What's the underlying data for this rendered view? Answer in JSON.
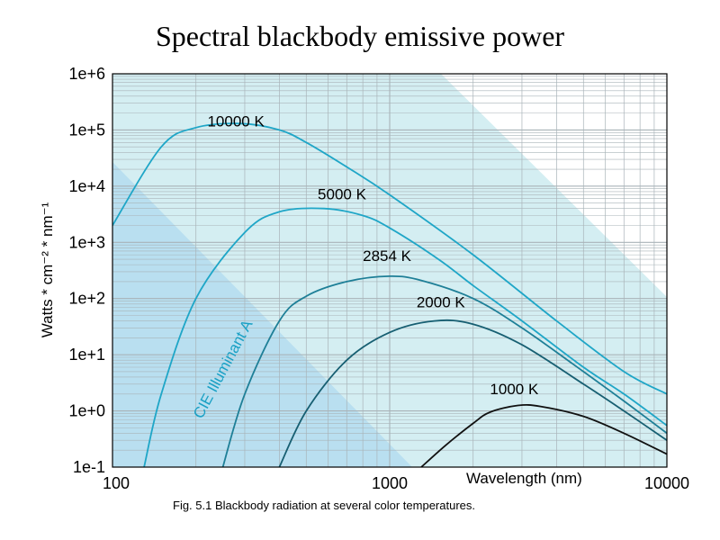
{
  "slide": {
    "title": "Spectral blackbody emissive power",
    "caption": "Fig. 5.1  Blackbody radiation at several color temperatures."
  },
  "chart_data": {
    "type": "line",
    "x_scale": "log",
    "y_scale": "log",
    "xlim": [
      100,
      10000
    ],
    "ylim": [
      0.1,
      1000000
    ],
    "x_ticks": [
      100,
      1000,
      10000
    ],
    "x_tick_labels": [
      "100",
      "1000",
      "10000"
    ],
    "y_ticks": [
      0.1,
      1,
      10,
      100,
      1000,
      10000,
      100000,
      1000000
    ],
    "y_tick_labels": [
      "1e-1",
      "1e+0",
      "1e+1",
      "1e+2",
      "1e+3",
      "1e+4",
      "1e+5",
      "1e+6"
    ],
    "xlabel": "Wavelength (nm)",
    "ylabel": "Watts * cm⁻² * nm⁻¹",
    "grid": true,
    "region_label": "CIE Illuminant A",
    "colors": {
      "background": "#ffffff",
      "plot_background": "#d4eef2",
      "visible_band": "#b9dff0",
      "grid": "#a9b3b8",
      "curve_hot": "#1fa6c7",
      "curve_mid": "#1e7f97",
      "curve_cool": "#175f72",
      "curve_1000K": "#111111",
      "region_text": "#1aa0c4"
    },
    "series": [
      {
        "name": "10000 K",
        "color": "#1fa6c7",
        "points": [
          [
            100,
            2000
          ],
          [
            150,
            50000
          ],
          [
            200,
            110000
          ],
          [
            290,
            130000
          ],
          [
            400,
            100000
          ],
          [
            500,
            60000
          ],
          [
            700,
            22000
          ],
          [
            1000,
            7000
          ],
          [
            2000,
            600
          ],
          [
            4000,
            40
          ],
          [
            7000,
            5
          ],
          [
            10000,
            2
          ]
        ]
      },
      {
        "name": "5000 K",
        "color": "#1fa6c7",
        "points": [
          [
            130,
            0.1
          ],
          [
            150,
            2
          ],
          [
            200,
            100
          ],
          [
            300,
            1500
          ],
          [
            400,
            3500
          ],
          [
            580,
            4000
          ],
          [
            800,
            3000
          ],
          [
            1000,
            1800
          ],
          [
            1500,
            500
          ],
          [
            2000,
            170
          ],
          [
            3000,
            40
          ],
          [
            5000,
            6
          ],
          [
            7000,
            2
          ],
          [
            10000,
            0.55
          ]
        ]
      },
      {
        "name": "2854 K",
        "color": "#1e7f97",
        "points": [
          [
            250,
            0.1
          ],
          [
            300,
            2
          ],
          [
            400,
            40
          ],
          [
            500,
            110
          ],
          [
            700,
            200
          ],
          [
            1000,
            250
          ],
          [
            1300,
            210
          ],
          [
            2000,
            100
          ],
          [
            3000,
            30
          ],
          [
            5000,
            5
          ],
          [
            7000,
            1.5
          ],
          [
            10000,
            0.4
          ]
        ]
      },
      {
        "name": "2000 K",
        "color": "#175f72",
        "points": [
          [
            400,
            0.1
          ],
          [
            500,
            1
          ],
          [
            700,
            8
          ],
          [
            1000,
            25
          ],
          [
            1450,
            40
          ],
          [
            2000,
            35
          ],
          [
            3000,
            15
          ],
          [
            5000,
            3
          ],
          [
            7000,
            1
          ],
          [
            10000,
            0.3
          ]
        ]
      },
      {
        "name": "1000 K",
        "color": "#111111",
        "points": [
          [
            1300,
            0.1
          ],
          [
            1600,
            0.25
          ],
          [
            2000,
            0.6
          ],
          [
            2300,
            0.95
          ],
          [
            2900,
            1.25
          ],
          [
            3500,
            1.2
          ],
          [
            5000,
            0.8
          ],
          [
            7000,
            0.4
          ],
          [
            10000,
            0.17
          ]
        ]
      }
    ]
  }
}
